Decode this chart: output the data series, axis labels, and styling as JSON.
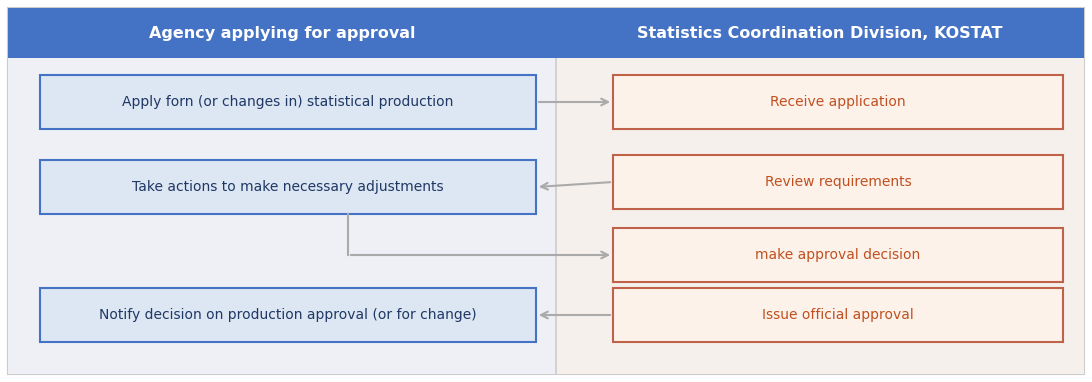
{
  "bg_color": "#f0f2f7",
  "fig_width": 10.92,
  "fig_height": 3.82,
  "outer_bg": "#f0f2f7",
  "inner_bg": "#f0f2f7",
  "header_bg": "#4472c4",
  "header_text_left": "Agency applying for approval",
  "header_text_right": "Statistics Coordination Division, KOSTAT",
  "header_text_color": "#ffffff",
  "left_col_bg": "#f0f2f7",
  "right_col_bg": "#f7f4f0",
  "left_box_bg": "#dde6f3",
  "left_box_border": "#4472c4",
  "left_box_text_color": "#1f3864",
  "right_box_bg": "#fdf2ea",
  "right_box_border": "#c0614a",
  "right_box_text_color": "#c05020",
  "left_boxes": [
    "Apply forn (or changes in) statistical production",
    "Take actions to make necessary adjustments",
    "Notify decision on production approval (or for change)"
  ],
  "right_boxes": [
    "Receive application",
    "Review requirements",
    "make approval decision",
    "Issue official approval"
  ],
  "arrow_color": "#aaaaaa",
  "border_color": "#bbbbbb",
  "divider_color": "#cccccc",
  "frame_border": "#cccccc"
}
